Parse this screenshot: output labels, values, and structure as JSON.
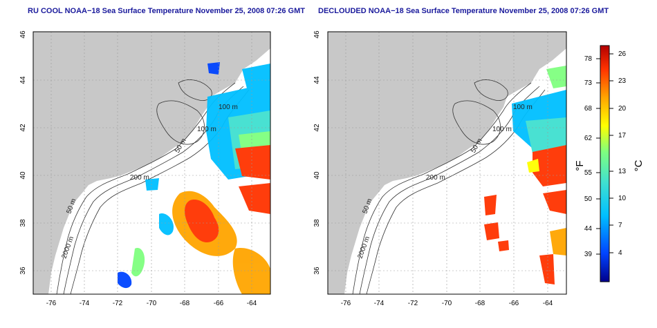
{
  "panels": [
    {
      "title": "RU COOL NOAA−18 Sea Surface Temperature November 25, 2008 07:26 GMT",
      "x_ticks": [
        "-76",
        "-74",
        "-72",
        "-70",
        "-68",
        "-66",
        "-64"
      ],
      "y_ticks": [
        "36",
        "38",
        "40",
        "42",
        "44",
        "46"
      ],
      "contour_labels": [
        "100 m",
        "100 m",
        "50 m",
        "200 m",
        "50 m",
        "2000 m"
      ]
    },
    {
      "title": "DECLOUDED NOAA−18 Sea Surface Temperature November 25, 2008 07:26 GMT",
      "x_ticks": [
        "-76",
        "-74",
        "-72",
        "-70",
        "-68",
        "-66",
        "-64"
      ],
      "y_ticks": [
        "36",
        "38",
        "40",
        "42",
        "44",
        "46"
      ],
      "contour_labels": [
        "100 m",
        "100 m",
        "50 m",
        "200 m",
        "50 m",
        "2000 m"
      ]
    }
  ],
  "colorbar": {
    "fahrenheit_label": "°F",
    "celsius_label": "°C",
    "fahrenheit_ticks": [
      "78",
      "73",
      "68",
      "62",
      "55",
      "50",
      "44",
      "39"
    ],
    "celsius_ticks": [
      "26",
      "23",
      "20",
      "17",
      "13",
      "10",
      "7",
      "4"
    ]
  },
  "colors": {
    "land": "#c8c8c8",
    "ocean": "#ffffff",
    "title": "#1a1a9c",
    "scale": [
      "#00008b",
      "#0044ff",
      "#00bfff",
      "#40e0d0",
      "#7fff7f",
      "#ffff00",
      "#ffa500",
      "#ff3300",
      "#b20000"
    ]
  }
}
